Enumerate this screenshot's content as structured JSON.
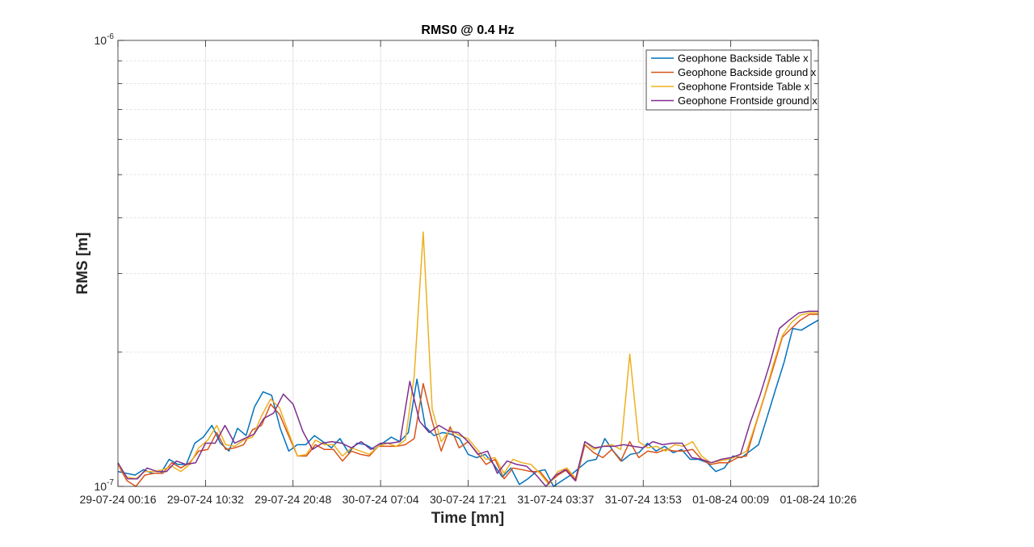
{
  "chart_data": {
    "type": "line",
    "title": "RMS0 @ 0.4 Hz",
    "xlabel": "Time [mn]",
    "ylabel": "RMS [m]",
    "yscale": "log",
    "ylim": [
      1e-07,
      1e-06
    ],
    "ytick_labels": [
      {
        "value": 1e-06,
        "base": "10",
        "exp": "-6"
      },
      {
        "value": 1e-07,
        "base": "10",
        "exp": "-7"
      }
    ],
    "xticks": [
      "29-07-24 00:16",
      "29-07-24 10:32",
      "29-07-24 20:48",
      "30-07-24 07:04",
      "30-07-24 17:21",
      "31-07-24 03:37",
      "31-07-24 13:53",
      "01-08-24 00:09",
      "01-08-24 10:26"
    ],
    "grid": true,
    "legend_position": "top-right",
    "samples_per_tick": 10,
    "colors": [
      "#0072BD",
      "#D95319",
      "#EDB120",
      "#7E2F8E"
    ],
    "series": [
      {
        "name": "Geophone Backside Table x",
        "values": [
          1.08e-07,
          1.07e-07,
          1.06e-07,
          1.09e-07,
          1.07e-07,
          1.07e-07,
          1.15e-07,
          1.12e-07,
          1.12e-07,
          1.25e-07,
          1.29e-07,
          1.37e-07,
          1.25e-07,
          1.2e-07,
          1.35e-07,
          1.3e-07,
          1.51e-07,
          1.63e-07,
          1.6e-07,
          1.35e-07,
          1.2e-07,
          1.24e-07,
          1.24e-07,
          1.3e-07,
          1.26e-07,
          1.22e-07,
          1.28e-07,
          1.19e-07,
          1.25e-07,
          1.24e-07,
          1.21e-07,
          1.25e-07,
          1.29e-07,
          1.26e-07,
          1.32e-07,
          1.74e-07,
          1.36e-07,
          1.3e-07,
          1.32e-07,
          1.31e-07,
          1.28e-07,
          1.18e-07,
          1.16e-07,
          1.18e-07,
          1.12e-07,
          1.05e-07,
          1.1e-07,
          1.01e-07,
          1.04e-07,
          1.08e-07,
          1.09e-07,
          1e-07,
          1.03e-07,
          1.06e-07,
          1.1e-07,
          1.14e-07,
          1.15e-07,
          1.28e-07,
          1.2e-07,
          1.14e-07,
          1.18e-07,
          1.19e-07,
          1.25e-07,
          1.2e-07,
          1.23e-07,
          1.19e-07,
          1.21e-07,
          1.15e-07,
          1.15e-07,
          1.13e-07,
          1.08e-07,
          1.1e-07,
          1.17e-07,
          1.16e-07,
          1.2e-07,
          1.24e-07,
          1.43e-07,
          1.65e-07,
          1.9e-07,
          2.26e-07,
          2.24e-07,
          2.3e-07,
          2.36e-07
        ]
      },
      {
        "name": "Geophone Backside ground x",
        "values": [
          1.12e-07,
          1.03e-07,
          1e-07,
          1.06e-07,
          1.07e-07,
          1.07e-07,
          1.13e-07,
          1.1e-07,
          1.13e-07,
          1.2e-07,
          1.21e-07,
          1.32e-07,
          1.21e-07,
          1.22e-07,
          1.24e-07,
          1.34e-07,
          1.37e-07,
          1.53e-07,
          1.45e-07,
          1.3e-07,
          1.17e-07,
          1.17e-07,
          1.24e-07,
          1.21e-07,
          1.21e-07,
          1.14e-07,
          1.2e-07,
          1.18e-07,
          1.17e-07,
          1.23e-07,
          1.23e-07,
          1.23e-07,
          1.24e-07,
          1.28e-07,
          1.7e-07,
          1.4e-07,
          1.2e-07,
          1.36e-07,
          1.22e-07,
          1.26e-07,
          1.19e-07,
          1.12e-07,
          1.15e-07,
          1.04e-07,
          1.1e-07,
          1.09e-07,
          1.08e-07,
          1.08e-07,
          1.02e-07,
          1.06e-07,
          1.09e-07,
          1.03e-07,
          1.24e-07,
          1.19e-07,
          1.16e-07,
          1.21e-07,
          1.14e-07,
          1.26e-07,
          1.16e-07,
          1.2e-07,
          1.19e-07,
          1.21e-07,
          1.2e-07,
          1.2e-07,
          1.21e-07,
          1.15e-07,
          1.12e-07,
          1.13e-07,
          1.13e-07,
          1.16e-07,
          1.17e-07,
          1.37e-07,
          1.59e-07,
          1.85e-07,
          2.16e-07,
          2.26e-07,
          2.36e-07,
          2.43e-07,
          2.43e-07
        ]
      },
      {
        "name": "Geophone Frontside Table x",
        "values": [
          1.12e-07,
          1.05e-07,
          1.04e-07,
          1.08e-07,
          1.08e-07,
          1.09e-07,
          1.11e-07,
          1.08e-07,
          1.12e-07,
          1.22e-07,
          1.27e-07,
          1.37e-07,
          1.24e-07,
          1.23e-07,
          1.27e-07,
          1.29e-07,
          1.44e-07,
          1.57e-07,
          1.5e-07,
          1.32e-07,
          1.17e-07,
          1.18e-07,
          1.27e-07,
          1.24e-07,
          1.24e-07,
          1.17e-07,
          1.22e-07,
          1.2e-07,
          1.18e-07,
          1.23e-07,
          1.25e-07,
          1.23e-07,
          1.27e-07,
          1.77e-07,
          3.72e-07,
          1.49e-07,
          1.26e-07,
          1.34e-07,
          1.3e-07,
          1.28e-07,
          1.21e-07,
          1.15e-07,
          1.16e-07,
          1.07e-07,
          1.15e-07,
          1.13e-07,
          1.12e-07,
          1.07e-07,
          1.01e-07,
          1.08e-07,
          1.1e-07,
          1.04e-07,
          1.26e-07,
          1.21e-07,
          1.23e-07,
          1.24e-07,
          1.21e-07,
          1.98e-07,
          1.26e-07,
          1.22e-07,
          1.23e-07,
          1.2e-07,
          1.24e-07,
          1.23e-07,
          1.26e-07,
          1.17e-07,
          1.13e-07,
          1.14e-07,
          1.15e-07,
          1.17e-07,
          1.2e-07,
          1.38e-07,
          1.6e-07,
          1.88e-07,
          2.18e-07,
          2.33e-07,
          2.42e-07,
          2.45e-07,
          2.45e-07
        ]
      },
      {
        "name": "Geophone Frontside ground x",
        "values": [
          1.13e-07,
          1.04e-07,
          1.04e-07,
          1.1e-07,
          1.08e-07,
          1.08e-07,
          1.14e-07,
          1.12e-07,
          1.13e-07,
          1.25e-07,
          1.25e-07,
          1.37e-07,
          1.25e-07,
          1.28e-07,
          1.31e-07,
          1.42e-07,
          1.46e-07,
          1.61e-07,
          1.53e-07,
          1.33e-07,
          1.21e-07,
          1.25e-07,
          1.26e-07,
          1.25e-07,
          1.22e-07,
          1.26e-07,
          1.21e-07,
          1.25e-07,
          1.25e-07,
          1.26e-07,
          1.72e-07,
          1.4e-07,
          1.32e-07,
          1.37e-07,
          1.33e-07,
          1.32e-07,
          1.26e-07,
          1.18e-07,
          1.2e-07,
          1.07e-07,
          1.14e-07,
          1.12e-07,
          1.11e-07,
          1.06e-07,
          1e-07,
          1.06e-07,
          1.09e-07,
          1.03e-07,
          1.26e-07,
          1.22e-07,
          1.23e-07,
          1.23e-07,
          1.24e-07,
          1.23e-07,
          1.22e-07,
          1.26e-07,
          1.24e-07,
          1.25e-07,
          1.25e-07,
          1.16e-07,
          1.15e-07,
          1.13e-07,
          1.15e-07,
          1.16e-07,
          1.18e-07,
          1.39e-07,
          1.6e-07,
          1.88e-07,
          2.26e-07,
          2.36e-07,
          2.45e-07,
          2.47e-07,
          2.47e-07
        ]
      }
    ]
  }
}
